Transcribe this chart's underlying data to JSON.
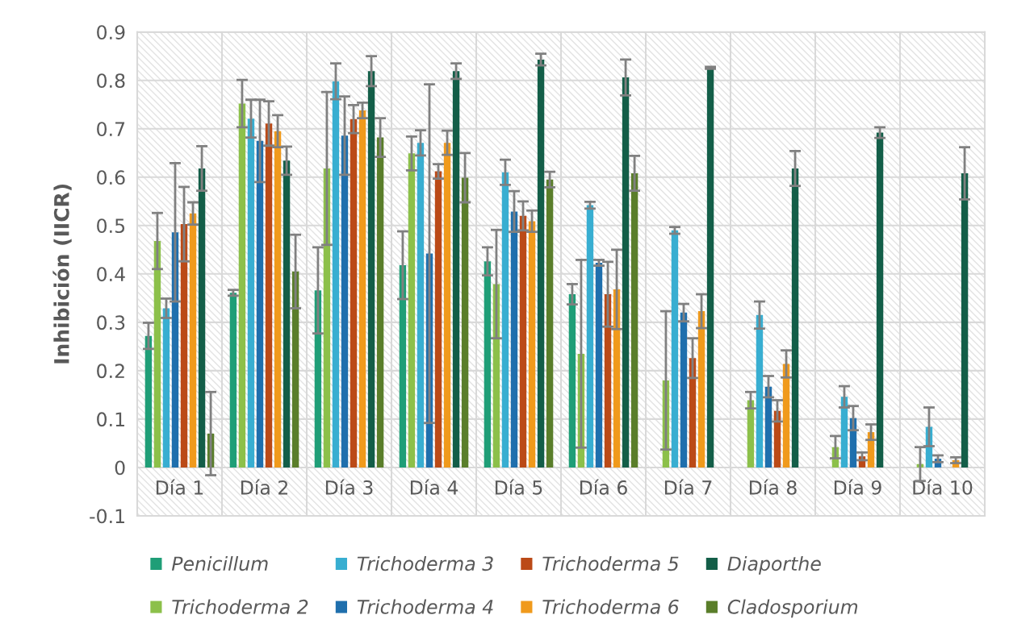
{
  "chart_data": {
    "type": "bar",
    "ylabel": "Inhibición (IICR)",
    "categories": [
      "Día 1",
      "Día 2",
      "Día 3",
      "Día 4",
      "Día 5",
      "Día 6",
      "Día 7",
      "Día 8",
      "Día 9",
      "Día 10"
    ],
    "ylim": [
      -0.1,
      0.9
    ],
    "yticks": [
      -0.1,
      0,
      0.1,
      0.2,
      0.3,
      0.4,
      0.5,
      0.6,
      0.7,
      0.8,
      0.9
    ],
    "grid": true,
    "legend": "bottom",
    "series": [
      {
        "name": "Penicillum",
        "color": "#1f9e77",
        "values": [
          0.272,
          0.361,
          0.366,
          0.418,
          0.426,
          0.358,
          null,
          null,
          null,
          null
        ],
        "errors": [
          0.027,
          0.006,
          0.089,
          0.07,
          0.029,
          0.021,
          null,
          null,
          null,
          null
        ]
      },
      {
        "name": "Trichoderma 2",
        "color": "#8cc04a",
        "values": [
          0.468,
          0.752,
          0.618,
          0.649,
          0.379,
          0.235,
          0.18,
          0.139,
          0.042,
          0.007
        ],
        "errors": [
          0.058,
          0.049,
          0.158,
          0.035,
          0.112,
          0.194,
          0.143,
          0.017,
          0.023,
          0.035
        ]
      },
      {
        "name": "Trichoderma 3",
        "color": "#38aed1",
        "values": [
          0.329,
          0.721,
          0.798,
          0.671,
          0.61,
          0.542,
          0.49,
          0.315,
          0.146,
          0.084
        ],
        "errors": [
          0.02,
          0.039,
          0.037,
          0.026,
          0.026,
          0.007,
          0.007,
          0.028,
          0.022,
          0.04
        ]
      },
      {
        "name": "Trichoderma 4",
        "color": "#1f6fad",
        "values": [
          0.486,
          0.675,
          0.686,
          0.442,
          0.529,
          0.423,
          0.32,
          0.167,
          0.102,
          0.018
        ],
        "errors": [
          0.143,
          0.085,
          0.081,
          0.35,
          0.042,
          0.006,
          0.018,
          0.022,
          0.025,
          0.007
        ]
      },
      {
        "name": "Trichoderma 5",
        "color": "#bb4a17",
        "values": [
          0.503,
          0.711,
          0.72,
          0.612,
          0.52,
          0.358,
          0.226,
          0.117,
          0.023,
          null
        ],
        "errors": [
          0.077,
          0.046,
          0.029,
          0.015,
          0.03,
          0.067,
          0.041,
          0.022,
          0.008,
          null
        ]
      },
      {
        "name": "Trichoderma 6",
        "color": "#f09a1c",
        "values": [
          0.525,
          0.695,
          0.738,
          0.671,
          0.509,
          0.368,
          0.323,
          0.214,
          0.073,
          0.015
        ],
        "errors": [
          0.023,
          0.033,
          0.016,
          0.025,
          0.022,
          0.082,
          0.035,
          0.028,
          0.016,
          0.006
        ]
      },
      {
        "name": "Diaporthe",
        "color": "#135e48",
        "values": [
          0.618,
          0.634,
          0.819,
          0.819,
          0.843,
          0.806,
          0.826,
          0.618,
          0.692,
          0.608
        ],
        "errors": [
          0.046,
          0.029,
          0.031,
          0.016,
          0.012,
          0.037,
          0.002,
          0.036,
          0.011,
          0.054
        ]
      },
      {
        "name": "Cladosporium",
        "color": "#5a7e2a",
        "values": [
          0.07,
          0.405,
          0.682,
          0.599,
          0.595,
          0.608,
          null,
          null,
          null,
          null
        ],
        "errors": [
          0.086,
          0.076,
          0.04,
          0.051,
          0.016,
          0.036,
          null,
          null,
          null,
          null
        ]
      }
    ]
  }
}
